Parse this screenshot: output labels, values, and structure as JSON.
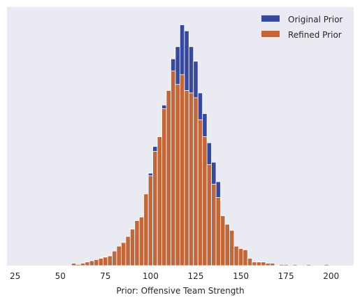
{
  "chart_data": {
    "type": "bar",
    "title": "",
    "xlabel": "Prior: Offensive Team Strength",
    "ylabel": "",
    "xlim": [
      20.5,
      212.5
    ],
    "ylim": [
      0,
      1.0
    ],
    "x_ticks": [
      25,
      50,
      75,
      100,
      125,
      150,
      175,
      200
    ],
    "y_ticks_shown": false,
    "grid": false,
    "legend_position": "top-right",
    "bin_width": 2.5,
    "values_are": "normalized bar heights (tallest bar = 1.0)",
    "series": [
      {
        "name": "Original Prior",
        "color": "#38489a",
        "bins": [
          {
            "x": 70.0,
            "h": 0.002
          },
          {
            "x": 72.5,
            "h": 0.002
          },
          {
            "x": 77.5,
            "h": 0.002
          },
          {
            "x": 82.5,
            "h": 0.005
          },
          {
            "x": 85.0,
            "h": 0.005
          },
          {
            "x": 87.5,
            "h": 0.012
          },
          {
            "x": 90.0,
            "h": 0.02
          },
          {
            "x": 92.5,
            "h": 0.035
          },
          {
            "x": 95.0,
            "h": 0.1
          },
          {
            "x": 97.5,
            "h": 0.21
          },
          {
            "x": 100.0,
            "h": 0.38
          },
          {
            "x": 102.5,
            "h": 0.49
          },
          {
            "x": 105.0,
            "h": 0.505
          },
          {
            "x": 107.5,
            "h": 0.66
          },
          {
            "x": 110.0,
            "h": 0.7
          },
          {
            "x": 112.5,
            "h": 0.85
          },
          {
            "x": 115.0,
            "h": 0.9
          },
          {
            "x": 117.5,
            "h": 0.99
          },
          {
            "x": 120.0,
            "h": 0.965
          },
          {
            "x": 122.5,
            "h": 0.9
          },
          {
            "x": 125.0,
            "h": 0.84
          },
          {
            "x": 127.5,
            "h": 0.71
          },
          {
            "x": 130.0,
            "h": 0.625
          },
          {
            "x": 132.5,
            "h": 0.505
          },
          {
            "x": 135.0,
            "h": 0.425
          },
          {
            "x": 137.5,
            "h": 0.345
          },
          {
            "x": 140.0,
            "h": 0.2
          },
          {
            "x": 142.5,
            "h": 0.125
          },
          {
            "x": 145.0,
            "h": 0.04
          },
          {
            "x": 147.5,
            "h": 0.04
          },
          {
            "x": 150.0,
            "h": 0.035
          },
          {
            "x": 152.5,
            "h": 0.01
          },
          {
            "x": 155.0,
            "h": 0.005
          },
          {
            "x": 157.5,
            "h": 0.002
          }
        ]
      },
      {
        "name": "Refined Prior",
        "color": "#c0683c",
        "bins": [
          {
            "x": 57.5,
            "h": 0.01
          },
          {
            "x": 60.0,
            "h": 0.005
          },
          {
            "x": 62.5,
            "h": 0.01
          },
          {
            "x": 65.0,
            "h": 0.015
          },
          {
            "x": 67.5,
            "h": 0.02
          },
          {
            "x": 70.0,
            "h": 0.025
          },
          {
            "x": 72.5,
            "h": 0.03
          },
          {
            "x": 75.0,
            "h": 0.035
          },
          {
            "x": 77.5,
            "h": 0.04
          },
          {
            "x": 80.0,
            "h": 0.06
          },
          {
            "x": 82.5,
            "h": 0.08
          },
          {
            "x": 85.0,
            "h": 0.095
          },
          {
            "x": 87.5,
            "h": 0.12
          },
          {
            "x": 90.0,
            "h": 0.15
          },
          {
            "x": 92.5,
            "h": 0.185
          },
          {
            "x": 95.0,
            "h": 0.2
          },
          {
            "x": 97.5,
            "h": 0.295
          },
          {
            "x": 100.0,
            "h": 0.37
          },
          {
            "x": 102.5,
            "h": 0.47
          },
          {
            "x": 105.0,
            "h": 0.53
          },
          {
            "x": 107.5,
            "h": 0.645
          },
          {
            "x": 110.0,
            "h": 0.72
          },
          {
            "x": 112.5,
            "h": 0.8
          },
          {
            "x": 115.0,
            "h": 0.745
          },
          {
            "x": 117.5,
            "h": 0.785
          },
          {
            "x": 120.0,
            "h": 0.72
          },
          {
            "x": 122.5,
            "h": 0.71
          },
          {
            "x": 125.0,
            "h": 0.69
          },
          {
            "x": 127.5,
            "h": 0.6
          },
          {
            "x": 130.0,
            "h": 0.53
          },
          {
            "x": 132.5,
            "h": 0.415
          },
          {
            "x": 135.0,
            "h": 0.335
          },
          {
            "x": 137.5,
            "h": 0.28
          },
          {
            "x": 140.0,
            "h": 0.205
          },
          {
            "x": 142.5,
            "h": 0.17
          },
          {
            "x": 145.0,
            "h": 0.145
          },
          {
            "x": 147.5,
            "h": 0.08
          },
          {
            "x": 150.0,
            "h": 0.07
          },
          {
            "x": 152.5,
            "h": 0.065
          },
          {
            "x": 155.0,
            "h": 0.03
          },
          {
            "x": 157.5,
            "h": 0.015
          },
          {
            "x": 160.0,
            "h": 0.015
          },
          {
            "x": 162.5,
            "h": 0.015
          },
          {
            "x": 165.0,
            "h": 0.01
          },
          {
            "x": 167.5,
            "h": 0.01
          },
          {
            "x": 172.5,
            "h": 0.005
          },
          {
            "x": 175.0,
            "h": 0.005
          },
          {
            "x": 180.0,
            "h": 0.005
          },
          {
            "x": 187.5,
            "h": 0.005
          },
          {
            "x": 197.5,
            "h": 0.005
          }
        ]
      }
    ]
  }
}
